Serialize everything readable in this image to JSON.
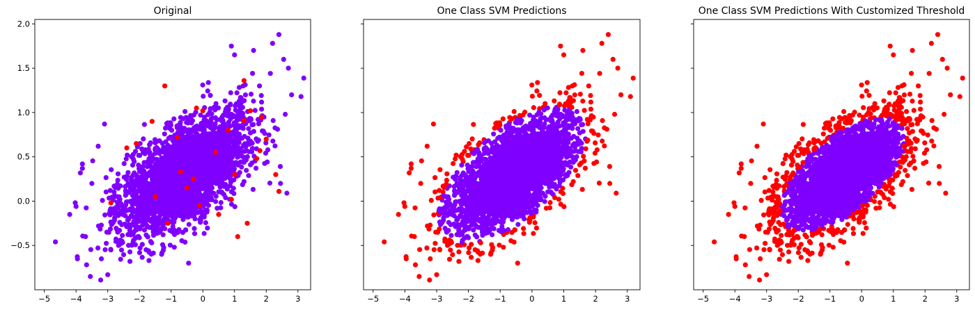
{
  "colors": {
    "inlier": "#7f00ff",
    "outlier": "#ff0000",
    "axes": "#000000",
    "background": "#ffffff"
  },
  "chart_data": [
    {
      "type": "scatter",
      "title": "Original",
      "xlabel": "",
      "ylabel": "",
      "xlim": [
        -5.3,
        3.4
      ],
      "ylim": [
        -1.0,
        2.05
      ],
      "xticks": [
        -5,
        -4,
        -3,
        -2,
        -1,
        0,
        1,
        2,
        3
      ],
      "yticks": [
        -0.5,
        0.0,
        0.5,
        1.0,
        1.5,
        2.0
      ],
      "xticklabels": [
        "−5",
        "−4",
        "−3",
        "−2",
        "−1",
        "0",
        "1",
        "2",
        "3"
      ],
      "yticklabels": [
        "−0.5",
        "0.0",
        "0.5",
        "1.0",
        "1.5",
        "2.0"
      ],
      "yticklabels_visible": true,
      "grid": false,
      "series": [
        {
          "color": "purple",
          "cluster": {
            "center": [
              -0.6,
              0.3
            ],
            "std_x": 1.0,
            "std_y": 0.33,
            "corr": 0.62
          },
          "points": [
            [
              -4.65,
              -0.46
            ],
            [
              -3.55,
              -0.85
            ],
            [
              -3.0,
              -0.83
            ],
            [
              -3.8,
              0.42
            ],
            [
              -3.8,
              0.37
            ],
            [
              -4.0,
              -0.06
            ],
            [
              -4.2,
              -0.15
            ],
            [
              -3.7,
              -0.4
            ],
            [
              -3.2,
              -0.65
            ],
            [
              -2.9,
              -0.55
            ],
            [
              -2.3,
              -0.68
            ],
            [
              -1.7,
              -0.67
            ],
            [
              -1.3,
              -0.6
            ],
            [
              -0.9,
              -0.52
            ],
            [
              -0.45,
              -0.7
            ],
            [
              2.4,
              1.88
            ],
            [
              2.2,
              1.78
            ],
            [
              2.55,
              1.6
            ],
            [
              2.7,
              1.5
            ],
            [
              3.1,
              1.18
            ],
            [
              2.8,
              1.2
            ],
            [
              2.6,
              0.98
            ],
            [
              2.65,
              0.09
            ],
            [
              2.45,
              0.2
            ],
            [
              1.0,
              1.65
            ],
            [
              0.9,
              1.75
            ],
            [
              1.6,
              1.7
            ],
            [
              -3.3,
              0.62
            ],
            [
              -3.5,
              0.2
            ],
            [
              -3.1,
              0.87
            ]
          ]
        },
        {
          "color": "red",
          "points": [
            [
              -2.4,
              0.6
            ],
            [
              -0.2,
              1.05
            ],
            [
              0.0,
              1.02
            ],
            [
              1.3,
              0.91
            ],
            [
              -1.6,
              0.9
            ],
            [
              -0.8,
              0.72
            ],
            [
              0.4,
              0.55
            ],
            [
              -2.1,
              0.65
            ],
            [
              1.0,
              0.3
            ],
            [
              -0.5,
              0.15
            ],
            [
              -1.1,
              -0.25
            ],
            [
              1.4,
              -0.25
            ],
            [
              0.5,
              -0.15
            ],
            [
              -0.7,
              0.33
            ],
            [
              1.8,
              0.57
            ],
            [
              1.7,
              0.48
            ],
            [
              0.9,
              0.02
            ],
            [
              2.3,
              0.3
            ],
            [
              2.4,
              0.11
            ],
            [
              2.0,
              0.7
            ],
            [
              -1.2,
              1.3
            ],
            [
              1.3,
              1.36
            ],
            [
              -2.9,
              -0.02
            ],
            [
              -0.3,
              0.25
            ],
            [
              0.8,
              0.8
            ],
            [
              1.85,
              0.95
            ],
            [
              -0.1,
              -0.05
            ],
            [
              1.5,
              1.02
            ],
            [
              -1.5,
              0.05
            ],
            [
              1.1,
              -0.4
            ]
          ]
        }
      ]
    },
    {
      "type": "scatter",
      "title": "One Class SVM Predictions",
      "xlabel": "",
      "ylabel": "",
      "xlim": [
        -5.3,
        3.4
      ],
      "ylim": [
        -1.0,
        2.05
      ],
      "xticks": [
        -5,
        -4,
        -3,
        -2,
        -1,
        0,
        1,
        2,
        3
      ],
      "xticklabels": [
        "−5",
        "−4",
        "−3",
        "−2",
        "−1",
        "0",
        "1",
        "2",
        "3"
      ],
      "yticklabels_visible": false,
      "grid": false,
      "series": [
        {
          "color": "purple",
          "cluster": {
            "center": [
              -0.6,
              0.3
            ],
            "std_x": 1.0,
            "std_y": 0.33,
            "corr": 0.62
          },
          "classified_by_ellipse": {
            "scale": 2.35
          }
        },
        {
          "color": "red",
          "points": [
            [
              -4.65,
              -0.46
            ],
            [
              -3.55,
              -0.85
            ],
            [
              -3.0,
              -0.83
            ],
            [
              -3.8,
              0.42
            ],
            [
              -3.8,
              0.37
            ],
            [
              -4.0,
              -0.06
            ],
            [
              -4.2,
              -0.15
            ],
            [
              -3.7,
              -0.4
            ],
            [
              -3.2,
              -0.65
            ],
            [
              -2.9,
              -0.55
            ],
            [
              -2.3,
              -0.68
            ],
            [
              -1.7,
              -0.67
            ],
            [
              -1.3,
              -0.6
            ],
            [
              -0.9,
              -0.52
            ],
            [
              -0.45,
              -0.7
            ],
            [
              2.4,
              1.88
            ],
            [
              2.2,
              1.78
            ],
            [
              2.55,
              1.6
            ],
            [
              2.7,
              1.5
            ],
            [
              3.1,
              1.18
            ],
            [
              2.8,
              1.2
            ],
            [
              2.6,
              0.98
            ],
            [
              2.65,
              0.09
            ],
            [
              2.45,
              0.2
            ],
            [
              1.0,
              1.65
            ],
            [
              0.9,
              1.75
            ],
            [
              1.6,
              1.7
            ],
            [
              -3.3,
              0.62
            ],
            [
              -3.5,
              0.2
            ],
            [
              -3.1,
              0.87
            ]
          ]
        }
      ]
    },
    {
      "type": "scatter",
      "title": "One Class SVM Predictions With Customized Threshold",
      "xlabel": "",
      "ylabel": "",
      "xlim": [
        -5.3,
        3.4
      ],
      "ylim": [
        -1.0,
        2.05
      ],
      "xticks": [
        -5,
        -4,
        -3,
        -2,
        -1,
        0,
        1,
        2,
        3
      ],
      "xticklabels": [
        "−5",
        "−4",
        "−3",
        "−2",
        "−1",
        "0",
        "1",
        "2",
        "3"
      ],
      "yticklabels_visible": false,
      "grid": false,
      "series": [
        {
          "color": "purple",
          "cluster": {
            "center": [
              -0.6,
              0.3
            ],
            "std_x": 1.0,
            "std_y": 0.33,
            "corr": 0.62
          },
          "classified_by_ellipse": {
            "scale": 1.95
          }
        },
        {
          "color": "red",
          "points": [
            [
              -4.65,
              -0.46
            ],
            [
              -3.55,
              -0.85
            ],
            [
              -3.0,
              -0.83
            ],
            [
              -3.8,
              0.42
            ],
            [
              -3.8,
              0.37
            ],
            [
              -4.0,
              -0.06
            ],
            [
              -4.2,
              -0.15
            ],
            [
              -3.7,
              -0.4
            ],
            [
              -3.2,
              -0.65
            ],
            [
              -2.9,
              -0.55
            ],
            [
              -2.3,
              -0.68
            ],
            [
              -1.7,
              -0.67
            ],
            [
              -1.3,
              -0.6
            ],
            [
              -0.9,
              -0.52
            ],
            [
              -0.45,
              -0.7
            ],
            [
              2.4,
              1.88
            ],
            [
              2.2,
              1.78
            ],
            [
              2.55,
              1.6
            ],
            [
              2.7,
              1.5
            ],
            [
              3.1,
              1.18
            ],
            [
              2.8,
              1.2
            ],
            [
              2.6,
              0.98
            ],
            [
              2.65,
              0.09
            ],
            [
              2.45,
              0.2
            ],
            [
              1.0,
              1.65
            ],
            [
              0.9,
              1.75
            ],
            [
              1.6,
              1.7
            ],
            [
              -3.3,
              0.62
            ],
            [
              -3.5,
              0.2
            ],
            [
              -3.1,
              0.87
            ]
          ]
        }
      ]
    }
  ]
}
